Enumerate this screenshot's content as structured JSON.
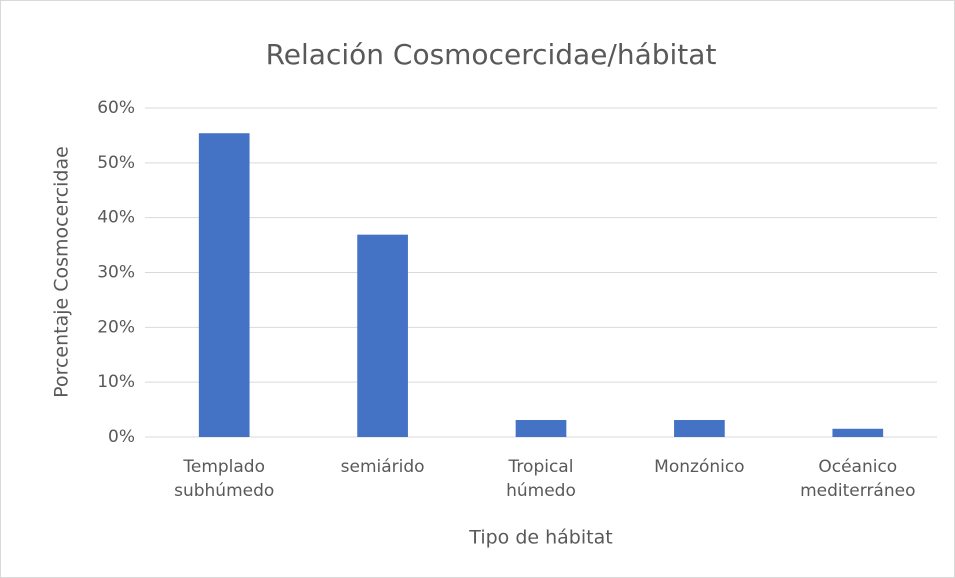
{
  "chart_data": {
    "type": "bar",
    "title": "Relación Cosmocercidae/hábitat",
    "xlabel": "Tipo de hábitat",
    "ylabel": "Porcentaje Cosmocercidae",
    "categories": [
      "Templado subhúmedo",
      "semiárido",
      "Tropical húmedo",
      "Monzónico",
      "Océanico mediterráneo"
    ],
    "values": [
      55.4,
      36.9,
      3.1,
      3.1,
      1.5
    ],
    "color": "#4472c4",
    "ylim": [
      0,
      60
    ],
    "yticks": [
      {
        "value": 0,
        "label": "0%"
      },
      {
        "value": 10,
        "label": "10%"
      },
      {
        "value": 20,
        "label": "20%"
      },
      {
        "value": 30,
        "label": "30%"
      },
      {
        "value": 40,
        "label": "40%"
      },
      {
        "value": 50,
        "label": "50%"
      },
      {
        "value": 60,
        "label": "60%"
      }
    ],
    "grid": true
  }
}
